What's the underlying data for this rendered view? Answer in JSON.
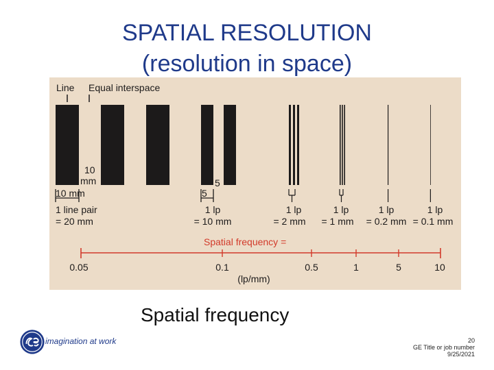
{
  "slide": {
    "title_line1": "SPATIAL RESOLUTION",
    "title_line2": "(resolution in space)",
    "caption": "Spatial frequency",
    "tagline": "imagination at work",
    "footer": {
      "page_number": "20",
      "job_title": "GE Title or job number",
      "date": "9/25/2021"
    },
    "brand_color": "#1f3a8a"
  },
  "figure": {
    "background_color": "#ecdcc8",
    "bar_color": "#1c1a1a",
    "axis_color": "#d23a2a",
    "labels": {
      "line": "Line",
      "equal_interspace": "Equal interspace",
      "ten": "10",
      "mm": "mm",
      "ten_mm": "10 mm",
      "five": "5",
      "five_small": "5"
    },
    "line_pair_labels": [
      {
        "line1": "1 line pair",
        "line2": "= 20 mm"
      },
      {
        "line1": "1 lp",
        "line2": "= 10 mm"
      },
      {
        "line1": "1 lp",
        "line2": "= 2 mm"
      },
      {
        "line1": "1 lp",
        "line2": "= 1 mm"
      },
      {
        "line1": "1 lp",
        "line2": "= 0.2 mm"
      },
      {
        "line1": "1 lp",
        "line2": "= 0.1 mm"
      }
    ],
    "spatial_frequency_label": "Spatial frequency =",
    "axis_unit": "(lp/mm)",
    "axis_ticks": [
      "0.05",
      "0.1",
      "0.5",
      "1",
      "5",
      "10"
    ]
  }
}
